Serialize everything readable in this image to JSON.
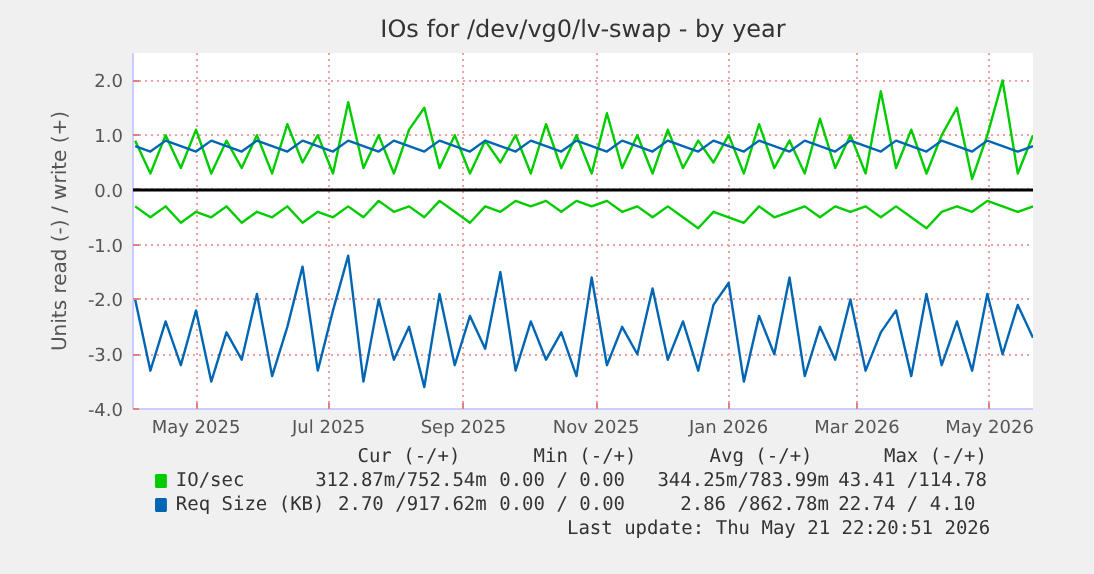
{
  "chart_data": {
    "type": "line",
    "title": "IOs for /dev/vg0/lv-swap - by year",
    "ylabel": "Units read (-) / write (+)",
    "x": [
      "2025-04-03",
      "2025-04-10",
      "2025-04-17",
      "2025-04-24",
      "2025-05-01",
      "2025-05-08",
      "2025-05-15",
      "2025-05-22",
      "2025-05-29",
      "2025-06-05",
      "2025-06-12",
      "2025-06-19",
      "2025-06-26",
      "2025-07-03",
      "2025-07-10",
      "2025-07-17",
      "2025-07-24",
      "2025-07-31",
      "2025-08-07",
      "2025-08-14",
      "2025-08-21",
      "2025-08-28",
      "2025-09-04",
      "2025-09-11",
      "2025-09-18",
      "2025-09-25",
      "2025-10-02",
      "2025-10-09",
      "2025-10-16",
      "2025-10-23",
      "2025-10-30",
      "2025-11-06",
      "2025-11-13",
      "2025-11-20",
      "2025-11-27",
      "2025-12-04",
      "2025-12-11",
      "2025-12-18",
      "2025-12-25",
      "2026-01-01",
      "2026-01-08",
      "2026-01-15",
      "2026-01-22",
      "2026-01-29",
      "2026-02-05",
      "2026-02-12",
      "2026-02-19",
      "2026-02-26",
      "2026-03-05",
      "2026-03-12",
      "2026-03-19",
      "2026-03-26",
      "2026-04-02",
      "2026-04-09",
      "2026-04-16",
      "2026-04-23",
      "2026-04-30",
      "2026-05-07",
      "2026-05-14",
      "2026-05-21"
    ],
    "series": [
      {
        "name": "IO/sec",
        "color": "#00cc00",
        "values": [
          0.9,
          0.3,
          1.0,
          0.4,
          1.1,
          0.3,
          0.9,
          0.4,
          1.0,
          0.3,
          1.2,
          0.5,
          1.0,
          0.3,
          1.6,
          0.4,
          1.0,
          0.3,
          1.1,
          1.5,
          0.4,
          1.0,
          0.3,
          0.9,
          0.5,
          1.0,
          0.3,
          1.2,
          0.4,
          1.0,
          0.3,
          1.4,
          0.4,
          1.0,
          0.3,
          1.1,
          0.4,
          0.9,
          0.5,
          1.0,
          0.3,
          1.2,
          0.4,
          0.9,
          0.3,
          1.3,
          0.4,
          1.0,
          0.3,
          1.8,
          0.4,
          1.1,
          0.3,
          1.0,
          1.5,
          0.2,
          1.0,
          2.0,
          0.3,
          1.0
        ]
      },
      {
        "color": "#00cc00",
        "values": [
          -0.3,
          -0.5,
          -0.3,
          -0.6,
          -0.4,
          -0.5,
          -0.3,
          -0.6,
          -0.4,
          -0.5,
          -0.3,
          -0.6,
          -0.4,
          -0.5,
          -0.3,
          -0.5,
          -0.2,
          -0.4,
          -0.3,
          -0.5,
          -0.2,
          -0.4,
          -0.6,
          -0.3,
          -0.4,
          -0.2,
          -0.3,
          -0.2,
          -0.4,
          -0.2,
          -0.3,
          -0.2,
          -0.4,
          -0.3,
          -0.5,
          -0.3,
          -0.5,
          -0.7,
          -0.4,
          -0.5,
          -0.6,
          -0.3,
          -0.5,
          -0.4,
          -0.3,
          -0.5,
          -0.3,
          -0.4,
          -0.3,
          -0.5,
          -0.3,
          -0.5,
          -0.7,
          -0.4,
          -0.3,
          -0.4,
          -0.2,
          -0.3,
          -0.4,
          -0.3
        ]
      },
      {
        "name": "Req Size (KB)",
        "color": "#0066b3",
        "values": [
          0.8,
          0.7,
          0.9,
          0.8,
          0.7,
          0.9,
          0.8,
          0.7,
          0.9,
          0.8,
          0.7,
          0.9,
          0.8,
          0.7,
          0.9,
          0.8,
          0.7,
          0.9,
          0.8,
          0.7,
          0.9,
          0.8,
          0.7,
          0.9,
          0.8,
          0.7,
          0.9,
          0.8,
          0.7,
          0.9,
          0.8,
          0.7,
          0.9,
          0.8,
          0.7,
          0.9,
          0.8,
          0.7,
          0.9,
          0.8,
          0.7,
          0.9,
          0.8,
          0.7,
          0.9,
          0.8,
          0.7,
          0.9,
          0.8,
          0.7,
          0.9,
          0.8,
          0.7,
          0.9,
          0.8,
          0.7,
          0.9,
          0.8,
          0.7,
          0.8
        ]
      },
      {
        "color": "#0066b3",
        "values": [
          -2.0,
          -3.3,
          -2.4,
          -3.2,
          -2.2,
          -3.5,
          -2.6,
          -3.1,
          -1.9,
          -3.4,
          -2.5,
          -1.4,
          -3.3,
          -2.2,
          -1.2,
          -3.5,
          -2.0,
          -3.1,
          -2.5,
          -3.6,
          -1.9,
          -3.2,
          -2.3,
          -2.9,
          -1.5,
          -3.3,
          -2.4,
          -3.1,
          -2.6,
          -3.4,
          -1.6,
          -3.2,
          -2.5,
          -3.0,
          -1.8,
          -3.1,
          -2.4,
          -3.3,
          -2.1,
          -1.7,
          -3.5,
          -2.3,
          -3.0,
          -1.6,
          -3.4,
          -2.5,
          -3.1,
          -2.0,
          -3.3,
          -2.6,
          -2.2,
          -3.4,
          -1.9,
          -3.2,
          -2.4,
          -3.3,
          -1.9,
          -3.0,
          -2.1,
          -2.7
        ]
      }
    ],
    "xlim": [
      "2025-04-02",
      "2026-05-21"
    ],
    "xticks": [
      {
        "value": "2025-05-01",
        "label": "May 2025"
      },
      {
        "value": "2025-07-01",
        "label": "Jul 2025"
      },
      {
        "value": "2025-09-01",
        "label": "Sep 2025"
      },
      {
        "value": "2025-11-01",
        "label": "Nov 2025"
      },
      {
        "value": "2026-01-01",
        "label": "Jan 2026"
      },
      {
        "value": "2026-03-01",
        "label": "Mar 2026"
      },
      {
        "value": "2026-05-01",
        "label": "May 2026"
      }
    ],
    "ylim": [
      -4.0,
      2.5
    ],
    "yticks": [
      {
        "value": -4,
        "label": "-4.0"
      },
      {
        "value": -3,
        "label": "-3.0"
      },
      {
        "value": -2,
        "label": "-2.0"
      },
      {
        "value": -1,
        "label": "-1.0"
      },
      {
        "value": 0,
        "label": "0.0"
      },
      {
        "value": 1,
        "label": "1.0"
      },
      {
        "value": 2,
        "label": "2.0"
      }
    ],
    "ref_lines": [
      {
        "axis": "y",
        "value": 0,
        "color": "#000000"
      }
    ],
    "grid": true,
    "legend": "bottom",
    "annotations": [
      "Cur (-/+)",
      "Min (-/+)",
      "Avg (-/+)",
      "Max (-/+)",
      "312.87m/752.54m",
      "0.00 /  0.00",
      "344.25m/783.99m",
      "43.41 /114.78",
      "2.70 /917.62m",
      "0.00 /  0.00",
      "2.86 /862.78m",
      "22.74 /  4.10",
      "Last update: Thu May 21 22:20:51 2026"
    ]
  }
}
